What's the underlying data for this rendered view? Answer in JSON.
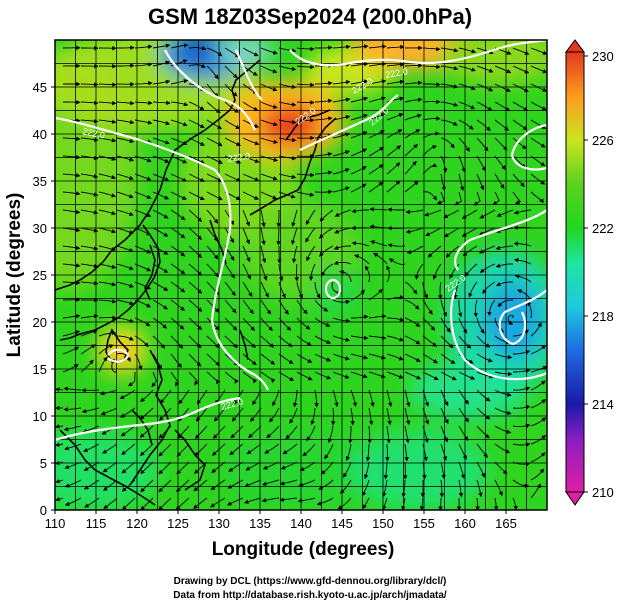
{
  "title": "GSM 18Z03Sep2024 (200.0hPa)",
  "xlabel": "Longitude (degrees)",
  "ylabel": "Latitude  (degrees)",
  "credit_line1": "Drawing by DCL (https://www.gfd-dennou.org/library/dcl/)",
  "credit_line2": "Data from http://database.rish.kyoto-u.ac.jp/arch/jmadata/",
  "xticks": [
    "110",
    "115",
    "120",
    "125",
    "130",
    "135",
    "140",
    "145",
    "150",
    "155",
    "160",
    "165"
  ],
  "yticks": [
    "0",
    "5",
    "10",
    "15",
    "20",
    "25",
    "30",
    "35",
    "40",
    "45"
  ],
  "colorbar_ticks": [
    "230",
    "226",
    "222",
    "218",
    "214",
    "210"
  ],
  "contour_labels": [
    "222.0",
    "222.0",
    "222.0",
    "222.0",
    "222.0",
    "222.0",
    "222.0",
    "222.0"
  ],
  "chart_data": {
    "type": "heatmap",
    "title": "GSM 18Z03Sep2024 (200.0hPa)",
    "xlabel": "Longitude (degrees)",
    "ylabel": "Latitude  (degrees)",
    "xlim": [
      110,
      170
    ],
    "ylim": [
      0,
      50
    ],
    "clim": [
      210,
      230
    ],
    "colormap": [
      "#e01ea6",
      "#1a1aa8",
      "#1e8ae0",
      "#1ee0c8",
      "#22d622",
      "#3ad21e",
      "#c8e61e",
      "#ff9a1e",
      "#e03a1e"
    ],
    "grid": true,
    "overlays": [
      "streamlines",
      "coastlines",
      "contour 222.0"
    ],
    "features": [
      {
        "name": "warm max",
        "lon": 140,
        "lat": 42,
        "value": 229
      },
      {
        "name": "cold min",
        "lon": 126,
        "lat": 48,
        "value": 217
      },
      {
        "name": "cold low",
        "lon": 165,
        "lat": 22,
        "value": 217
      },
      {
        "name": "warm spot",
        "lon": 118,
        "lat": 19,
        "value": 226
      },
      {
        "name": "vortex",
        "lon": 143,
        "lat": 26,
        "value": 222
      },
      {
        "name": "warm ridge",
        "lon": 131,
        "lat": 30,
        "value": 223
      }
    ]
  }
}
